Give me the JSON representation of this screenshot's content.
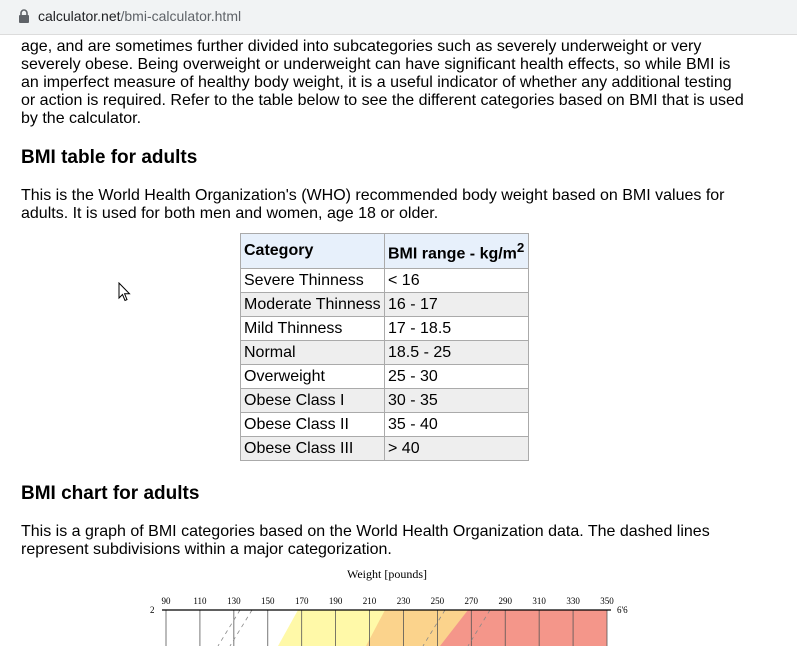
{
  "browser": {
    "url_domain": "calculator.net",
    "url_path": "/bmi-calculator.html"
  },
  "intro_paragraph_lines": [
    "age, and are sometimes further divided into subcategories such as severely underweight or very",
    "severely obese. Being overweight or underweight can have significant health effects, so while BMI is",
    "an imperfect measure of healthy body weight, it is a useful indicator of whether any additional testing",
    "or action is required. Refer to the table below to see the different categories based on BMI that is used",
    "by the calculator."
  ],
  "table_section": {
    "heading": "BMI table for adults",
    "description_lines": [
      "This is the World Health Organization's (WHO) recommended body weight based on BMI values for",
      "adults. It is used for both men and women, age 18 or older."
    ],
    "col_category": "Category",
    "col_range": "BMI range - kg/m",
    "col_range_sup": "2",
    "rows": [
      {
        "category": "Severe Thinness",
        "range": "< 16"
      },
      {
        "category": "Moderate Thinness",
        "range": "16 - 17"
      },
      {
        "category": "Mild Thinness",
        "range": "17 - 18.5"
      },
      {
        "category": "Normal",
        "range": "18.5 - 25"
      },
      {
        "category": "Overweight",
        "range": "25 - 30"
      },
      {
        "category": "Obese Class I",
        "range": "30 - 35"
      },
      {
        "category": "Obese Class II",
        "range": "35 - 40"
      },
      {
        "category": "Obese Class III",
        "range": "> 40"
      }
    ]
  },
  "chart_section": {
    "heading": "BMI chart for adults",
    "description_lines": [
      "This is a graph of BMI categories based on the World Health Organization data. The dashed lines",
      "represent subdivisions within a major categorization."
    ]
  },
  "chart_data": {
    "type": "area",
    "title": "Weight [pounds]",
    "x_ticks": [
      "90",
      "110",
      "130",
      "150",
      "170",
      "190",
      "210",
      "230",
      "250",
      "270",
      "290",
      "310",
      "330",
      "350"
    ],
    "left_label": "2",
    "right_label": "6'6",
    "colors": {
      "underweight": "#ffffff",
      "normal": "#fff9a8",
      "overweight": "#fbd38c",
      "obese": "#f4968a"
    }
  }
}
